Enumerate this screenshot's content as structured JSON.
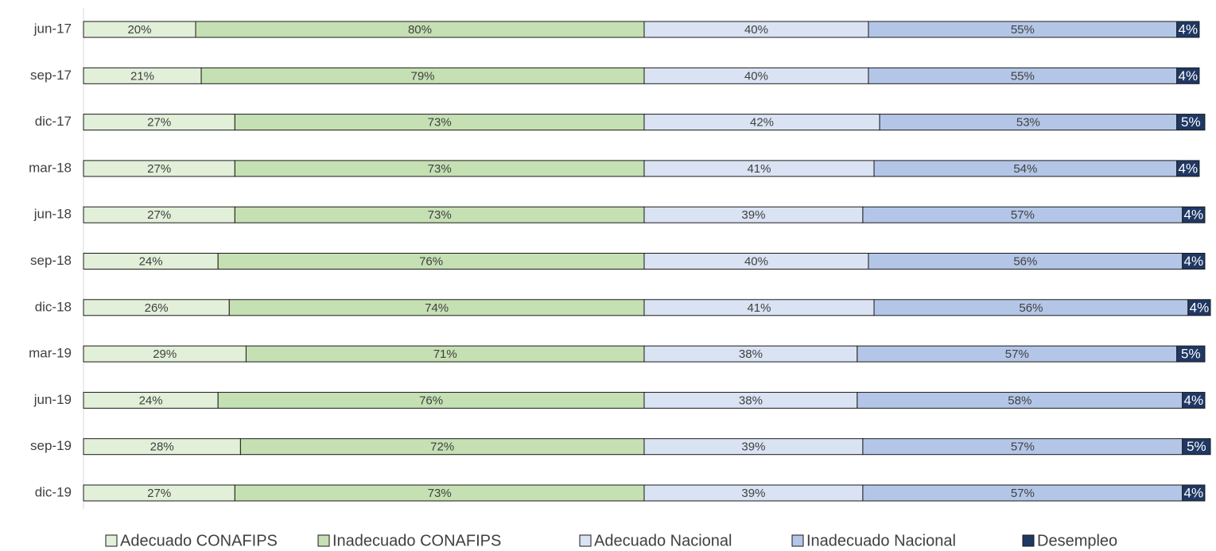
{
  "chart_data": {
    "type": "bar",
    "orientation": "horizontal",
    "stacked": true,
    "categories": [
      "jun-17",
      "sep-17",
      "dic-17",
      "mar-18",
      "jun-18",
      "sep-18",
      "dic-18",
      "mar-19",
      "jun-19",
      "sep-19",
      "dic-19"
    ],
    "series": [
      {
        "name": "Adecuado CONAFIPS",
        "color": "#e2efd9",
        "group": "CONAFIPS",
        "values": [
          20,
          21,
          27,
          27,
          27,
          24,
          26,
          29,
          24,
          28,
          27
        ],
        "value_labels": [
          "20%",
          "21%",
          "27%",
          "27%",
          "27%",
          "24%",
          "26%",
          "29%",
          "24%",
          "28%",
          "27%"
        ]
      },
      {
        "name": "Inadecuado CONAFIPS",
        "color": "#c5e0b3",
        "group": "CONAFIPS",
        "values": [
          80,
          79,
          73,
          73,
          73,
          76,
          74,
          71,
          76,
          72,
          73
        ],
        "value_labels": [
          "80%",
          "79%",
          "73%",
          "73%",
          "73%",
          "76%",
          "74%",
          "71%",
          "76%",
          "72%",
          "73%"
        ]
      },
      {
        "name": "Adecuado Nacional",
        "color": "#dae3f3",
        "group": "Nacional",
        "values": [
          40,
          40,
          42,
          41,
          39,
          40,
          41,
          38,
          38,
          39,
          39
        ],
        "value_labels": [
          "40%",
          "40%",
          "42%",
          "41%",
          "39%",
          "40%",
          "41%",
          "38%",
          "38%",
          "39%",
          "39%"
        ]
      },
      {
        "name": "Inadecuado Nacional",
        "color": "#b4c6e7",
        "group": "Nacional",
        "values": [
          55,
          55,
          53,
          54,
          57,
          56,
          56,
          57,
          58,
          57,
          57
        ],
        "value_labels": [
          "55%",
          "55%",
          "53%",
          "54%",
          "57%",
          "56%",
          "56%",
          "57%",
          "58%",
          "57%",
          "57%"
        ]
      },
      {
        "name": "Desempleo",
        "color": "#1f3864",
        "group": "Nacional",
        "values": [
          4,
          4,
          5,
          4,
          4,
          4,
          4,
          5,
          4,
          5,
          4
        ],
        "value_labels": [
          "4%",
          "4%",
          "5%",
          "4%",
          "4%",
          "4%",
          "4%",
          "5%",
          "4%",
          "5%",
          "4%"
        ]
      }
    ],
    "legend": "bottom"
  }
}
